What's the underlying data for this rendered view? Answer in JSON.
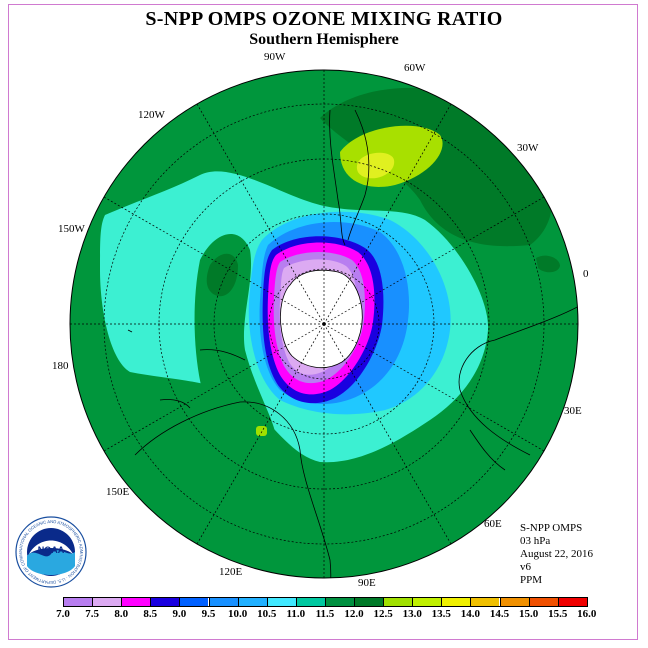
{
  "title": "S-NPP OMPS OZONE MIXING RATIO",
  "subtitle": "Southern Hemisphere",
  "longitude_labels": {
    "w90": "90W",
    "w60": "60W",
    "w30": "30W",
    "w120": "120W",
    "w150": "150W",
    "e0": "0",
    "e180": "180",
    "e30": "30E",
    "e150": "150E",
    "e60": "60E",
    "e120": "120E",
    "e90": "90E"
  },
  "info": {
    "instrument": "S-NPP OMPS",
    "level": "03 hPa",
    "date": "August 22, 2016",
    "version": "v6",
    "units": "PPM"
  },
  "logo": {
    "text": "NOAA",
    "ring_text": "NATIONAL OCEANIC AND ATMOSPHERIC ADMINISTRATION · U.S. DEPARTMENT OF COMMERCE"
  },
  "colorbar": {
    "ticks": [
      "7.0",
      "7.5",
      "8.0",
      "8.5",
      "9.0",
      "9.5",
      "10.0",
      "10.5",
      "11.0",
      "11.5",
      "12.0",
      "12.5",
      "13.0",
      "13.5",
      "14.0",
      "14.5",
      "15.0",
      "15.5",
      "16.0"
    ],
    "colors": [
      "#b87ef0",
      "#dcaaf2",
      "#ff00ff",
      "#1a00e0",
      "#0060ff",
      "#1890ff",
      "#20b0ff",
      "#40e8ff",
      "#00c8a0",
      "#009040",
      "#007a28",
      "#a0e000",
      "#c0f000",
      "#f0f000",
      "#f0c000",
      "#f09000",
      "#f05000",
      "#f00000",
      "#8b5a2b"
    ],
    "scale": {
      "min": 7.0,
      "max": 16.0
    }
  },
  "colors": {
    "background_green": "#00963c",
    "dark_green": "#007a28",
    "turquoise": "#3cf0d2",
    "sky_blue": "#20b0ff",
    "blue": "#1890ff",
    "deep_blue": "#1a00e0",
    "magenta": "#ff00ff",
    "violet": "#b87ef0",
    "lime": "#a0e000",
    "yellow_green": "#d8f020"
  }
}
